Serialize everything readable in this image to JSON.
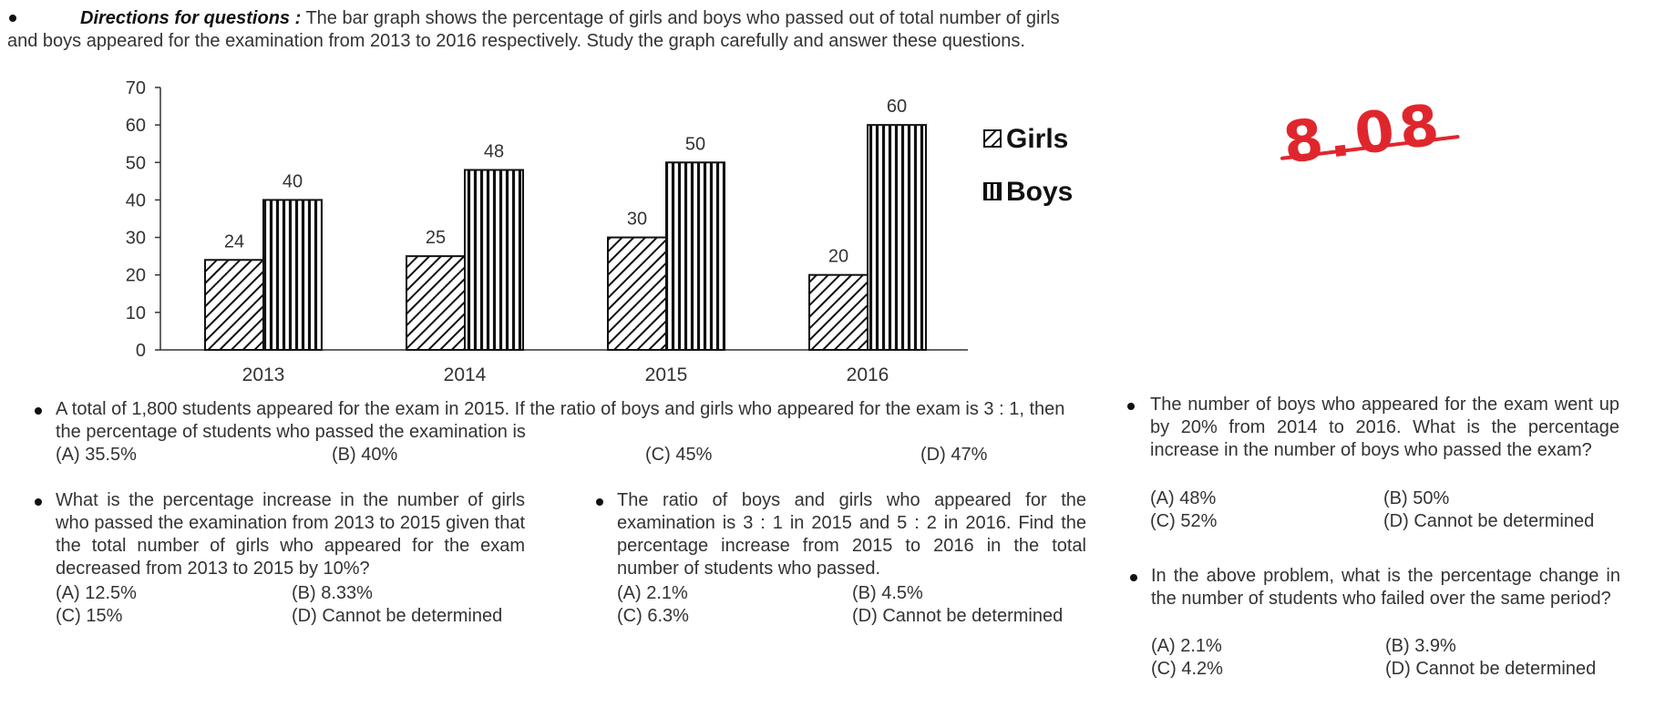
{
  "directions": {
    "heading": "Directions for questions :",
    "text": " The bar graph shows the percentage of girls and boys who passed out of total number of girls and boys appeared for the examination from 2013 to 2016 respectively. Study the graph carefully and answer these questions."
  },
  "chart_data": {
    "type": "bar",
    "categories": [
      "2013",
      "2014",
      "2015",
      "2016"
    ],
    "series": [
      {
        "name": "Girls",
        "values": [
          24,
          25,
          30,
          20
        ],
        "pattern": "diagonal-hatch"
      },
      {
        "name": "Boys",
        "values": [
          40,
          48,
          50,
          60
        ],
        "pattern": "vertical-lines"
      }
    ],
    "ylim": [
      0,
      70
    ],
    "yticks": [
      0,
      10,
      20,
      30,
      40,
      50,
      60,
      70
    ],
    "grid": false,
    "legend": "right",
    "data_labels": true
  },
  "handwritten_note": {
    "text": "8.08",
    "color": "#e0262d"
  },
  "questions": [
    {
      "text": "A total of 1,800 students appeared for the exam in 2015. If the ratio of boys and girls who appeared for the exam is 3 : 1, then the percentage of students who passed the examination is",
      "options": [
        "(A)  35.5%",
        "(B)  40%",
        "(C)  45%",
        "(D)  47%"
      ]
    },
    {
      "text": "What is the percentage increase in the number of girls who passed the examination from 2013 to 2015 given that the total number of girls who appeared for the exam decreased from 2013 to 2015 by 10%?",
      "options": [
        "(A)  12.5%",
        "(B)  8.33%",
        "(C)  15%",
        "(D)  Cannot be determined"
      ]
    },
    {
      "text": "The ratio of boys and girls who appeared for the examination is 3 : 1 in 2015 and 5 : 2 in 2016. Find the percentage increase from 2015 to 2016 in the total number of students who passed.",
      "options": [
        "(A)  2.1%",
        "(B)  4.5%",
        "(C)  6.3%",
        "(D)  Cannot be determined"
      ]
    },
    {
      "text": "The number of boys who appeared for the exam went up by 20% from 2014 to 2016. What is the percentage increase in the number of boys who passed the exam?",
      "options": [
        "(A)  48%",
        "(B)  50%",
        "(C)  52%",
        "(D)  Cannot be determined"
      ]
    },
    {
      "text": "In the above problem, what is the percentage change in the number of students who failed over the same period?",
      "options": [
        "(A)  2.1%",
        "(B)  3.9%",
        "(C)  4.2%",
        "(D)  Cannot be determined"
      ]
    }
  ]
}
